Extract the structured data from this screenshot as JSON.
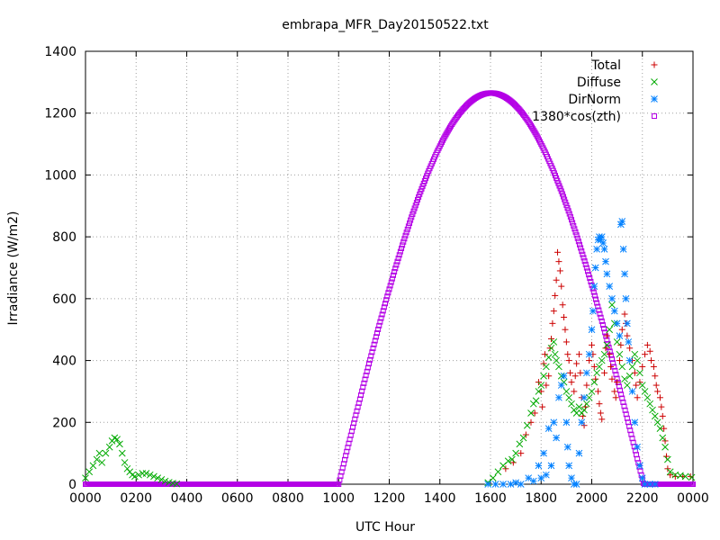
{
  "chart_data": {
    "type": "scatter",
    "title": "embrapa_MFR_Day20150522.txt",
    "xlabel": "UTC Hour",
    "ylabel": "Irradiance (W/m2)",
    "xlim": [
      0,
      24
    ],
    "ylim": [
      0,
      1400
    ],
    "grid": true,
    "legend_position": "top-right",
    "x_ticks": [
      {
        "x": 0,
        "label": "0000"
      },
      {
        "x": 2,
        "label": "0200"
      },
      {
        "x": 4,
        "label": "0400"
      },
      {
        "x": 6,
        "label": "0600"
      },
      {
        "x": 8,
        "label": "0800"
      },
      {
        "x": 10,
        "label": "1000"
      },
      {
        "x": 12,
        "label": "1200"
      },
      {
        "x": 14,
        "label": "1400"
      },
      {
        "x": 16,
        "label": "1600"
      },
      {
        "x": 18,
        "label": "1800"
      },
      {
        "x": 20,
        "label": "2000"
      },
      {
        "x": 22,
        "label": "2200"
      },
      {
        "x": 24,
        "label": "0000"
      }
    ],
    "y_ticks": [
      0,
      200,
      400,
      600,
      800,
      1000,
      1200,
      1400
    ],
    "series": [
      {
        "name": "Total",
        "marker": "+",
        "color": "#cc0000",
        "points": [
          [
            16.6,
            50
          ],
          [
            16.9,
            70
          ],
          [
            17.2,
            100
          ],
          [
            17.4,
            160
          ],
          [
            17.6,
            200
          ],
          [
            17.75,
            230
          ],
          [
            17.9,
            330
          ],
          [
            18.0,
            300
          ],
          [
            18.05,
            250
          ],
          [
            18.1,
            390
          ],
          [
            18.15,
            420
          ],
          [
            18.2,
            320
          ],
          [
            18.3,
            350
          ],
          [
            18.35,
            440
          ],
          [
            18.4,
            470
          ],
          [
            18.45,
            520
          ],
          [
            18.5,
            560
          ],
          [
            18.55,
            610
          ],
          [
            18.6,
            660
          ],
          [
            18.65,
            750
          ],
          [
            18.7,
            720
          ],
          [
            18.75,
            690
          ],
          [
            18.8,
            640
          ],
          [
            18.85,
            580
          ],
          [
            18.9,
            540
          ],
          [
            18.95,
            500
          ],
          [
            19.0,
            460
          ],
          [
            19.05,
            420
          ],
          [
            19.1,
            400
          ],
          [
            19.15,
            360
          ],
          [
            19.2,
            330
          ],
          [
            19.3,
            300
          ],
          [
            19.35,
            350
          ],
          [
            19.4,
            390
          ],
          [
            19.5,
            420
          ],
          [
            19.55,
            360
          ],
          [
            19.6,
            280
          ],
          [
            19.65,
            220
          ],
          [
            19.7,
            190
          ],
          [
            19.75,
            250
          ],
          [
            19.8,
            320
          ],
          [
            19.9,
            400
          ],
          [
            20.0,
            450
          ],
          [
            20.05,
            420
          ],
          [
            20.1,
            380
          ],
          [
            20.15,
            340
          ],
          [
            20.25,
            300
          ],
          [
            20.3,
            260
          ],
          [
            20.35,
            230
          ],
          [
            20.4,
            210
          ],
          [
            20.5,
            360
          ],
          [
            20.55,
            440
          ],
          [
            20.6,
            480
          ],
          [
            20.7,
            420
          ],
          [
            20.75,
            380
          ],
          [
            20.8,
            340
          ],
          [
            20.9,
            300
          ],
          [
            20.95,
            280
          ],
          [
            21.0,
            330
          ],
          [
            21.1,
            400
          ],
          [
            21.15,
            450
          ],
          [
            21.2,
            500
          ],
          [
            21.3,
            550
          ],
          [
            21.35,
            520
          ],
          [
            21.4,
            480
          ],
          [
            21.5,
            440
          ],
          [
            21.6,
            400
          ],
          [
            21.7,
            360
          ],
          [
            21.75,
            320
          ],
          [
            21.8,
            280
          ],
          [
            21.9,
            330
          ],
          [
            22.0,
            380
          ],
          [
            22.1,
            420
          ],
          [
            22.2,
            450
          ],
          [
            22.3,
            430
          ],
          [
            22.35,
            400
          ],
          [
            22.45,
            380
          ],
          [
            22.5,
            350
          ],
          [
            22.55,
            320
          ],
          [
            22.6,
            300
          ],
          [
            22.7,
            280
          ],
          [
            22.75,
            250
          ],
          [
            22.8,
            220
          ],
          [
            22.85,
            180
          ],
          [
            22.9,
            140
          ],
          [
            22.95,
            90
          ],
          [
            23.0,
            50
          ],
          [
            23.1,
            30
          ],
          [
            23.3,
            25
          ],
          [
            23.6,
            25
          ],
          [
            23.9,
            25
          ]
        ]
      },
      {
        "name": "Diffuse",
        "marker": "x",
        "color": "#00aa00",
        "points": [
          [
            0.0,
            20
          ],
          [
            0.15,
            40
          ],
          [
            0.3,
            60
          ],
          [
            0.45,
            80
          ],
          [
            0.55,
            100
          ],
          [
            0.65,
            70
          ],
          [
            0.8,
            100
          ],
          [
            0.95,
            120
          ],
          [
            1.05,
            140
          ],
          [
            1.15,
            150
          ],
          [
            1.25,
            145
          ],
          [
            1.35,
            130
          ],
          [
            1.45,
            100
          ],
          [
            1.55,
            70
          ],
          [
            1.65,
            50
          ],
          [
            1.75,
            40
          ],
          [
            1.85,
            30
          ],
          [
            1.95,
            25
          ],
          [
            2.1,
            30
          ],
          [
            2.25,
            35
          ],
          [
            2.4,
            35
          ],
          [
            2.55,
            30
          ],
          [
            2.7,
            25
          ],
          [
            2.85,
            20
          ],
          [
            3.0,
            15
          ],
          [
            3.15,
            10
          ],
          [
            3.3,
            6
          ],
          [
            3.45,
            3
          ],
          [
            3.6,
            1
          ],
          [
            15.9,
            5
          ],
          [
            16.1,
            20
          ],
          [
            16.3,
            40
          ],
          [
            16.5,
            60
          ],
          [
            16.7,
            75
          ],
          [
            16.85,
            80
          ],
          [
            17.0,
            100
          ],
          [
            17.15,
            130
          ],
          [
            17.3,
            150
          ],
          [
            17.45,
            190
          ],
          [
            17.6,
            230
          ],
          [
            17.7,
            260
          ],
          [
            17.8,
            270
          ],
          [
            17.9,
            300
          ],
          [
            18.0,
            320
          ],
          [
            18.1,
            350
          ],
          [
            18.2,
            380
          ],
          [
            18.3,
            410
          ],
          [
            18.4,
            440
          ],
          [
            18.5,
            460
          ],
          [
            18.55,
            420
          ],
          [
            18.6,
            400
          ],
          [
            18.7,
            380
          ],
          [
            18.8,
            350
          ],
          [
            18.9,
            330
          ],
          [
            19.0,
            300
          ],
          [
            19.1,
            280
          ],
          [
            19.2,
            260
          ],
          [
            19.3,
            240
          ],
          [
            19.4,
            230
          ],
          [
            19.5,
            250
          ],
          [
            19.6,
            230
          ],
          [
            19.7,
            240
          ],
          [
            19.8,
            260
          ],
          [
            19.9,
            280
          ],
          [
            20.0,
            300
          ],
          [
            20.1,
            330
          ],
          [
            20.2,
            360
          ],
          [
            20.3,
            380
          ],
          [
            20.4,
            400
          ],
          [
            20.5,
            420
          ],
          [
            20.6,
            450
          ],
          [
            20.7,
            500
          ],
          [
            20.8,
            580
          ],
          [
            20.9,
            520
          ],
          [
            21.0,
            460
          ],
          [
            21.1,
            420
          ],
          [
            21.2,
            380
          ],
          [
            21.3,
            340
          ],
          [
            21.4,
            320
          ],
          [
            21.5,
            350
          ],
          [
            21.6,
            380
          ],
          [
            21.7,
            420
          ],
          [
            21.8,
            400
          ],
          [
            21.9,
            360
          ],
          [
            22.0,
            320
          ],
          [
            22.1,
            300
          ],
          [
            22.2,
            280
          ],
          [
            22.3,
            260
          ],
          [
            22.4,
            240
          ],
          [
            22.5,
            220
          ],
          [
            22.6,
            200
          ],
          [
            22.7,
            180
          ],
          [
            22.8,
            150
          ],
          [
            22.9,
            120
          ],
          [
            23.0,
            80
          ],
          [
            23.1,
            40
          ],
          [
            23.3,
            30
          ],
          [
            23.5,
            28
          ],
          [
            23.7,
            25
          ],
          [
            23.95,
            22
          ]
        ]
      },
      {
        "name": "DirNorm",
        "marker": "*",
        "color": "#0080ff",
        "points": [
          [
            15.9,
            0
          ],
          [
            16.2,
            0
          ],
          [
            16.5,
            0
          ],
          [
            16.8,
            0
          ],
          [
            17.0,
            5
          ],
          [
            17.2,
            0
          ],
          [
            17.5,
            20
          ],
          [
            17.7,
            10
          ],
          [
            17.9,
            60
          ],
          [
            18.0,
            20
          ],
          [
            18.1,
            100
          ],
          [
            18.2,
            30
          ],
          [
            18.3,
            180
          ],
          [
            18.4,
            60
          ],
          [
            18.5,
            200
          ],
          [
            18.6,
            150
          ],
          [
            18.7,
            280
          ],
          [
            18.8,
            320
          ],
          [
            18.9,
            350
          ],
          [
            19.0,
            200
          ],
          [
            19.05,
            120
          ],
          [
            19.1,
            60
          ],
          [
            19.2,
            20
          ],
          [
            19.3,
            0
          ],
          [
            19.4,
            0
          ],
          [
            19.5,
            100
          ],
          [
            19.6,
            200
          ],
          [
            19.7,
            280
          ],
          [
            19.8,
            360
          ],
          [
            19.9,
            420
          ],
          [
            20.0,
            500
          ],
          [
            20.05,
            560
          ],
          [
            20.1,
            640
          ],
          [
            20.15,
            700
          ],
          [
            20.2,
            760
          ],
          [
            20.25,
            790
          ],
          [
            20.3,
            800
          ],
          [
            20.35,
            790
          ],
          [
            20.4,
            800
          ],
          [
            20.45,
            780
          ],
          [
            20.5,
            760
          ],
          [
            20.55,
            720
          ],
          [
            20.6,
            680
          ],
          [
            20.7,
            640
          ],
          [
            20.8,
            600
          ],
          [
            20.9,
            560
          ],
          [
            21.0,
            520
          ],
          [
            21.1,
            480
          ],
          [
            21.15,
            840
          ],
          [
            21.2,
            850
          ],
          [
            21.25,
            760
          ],
          [
            21.3,
            680
          ],
          [
            21.35,
            600
          ],
          [
            21.4,
            520
          ],
          [
            21.45,
            460
          ],
          [
            21.5,
            400
          ],
          [
            21.6,
            300
          ],
          [
            21.7,
            200
          ],
          [
            21.8,
            120
          ],
          [
            21.9,
            60
          ],
          [
            22.0,
            20
          ],
          [
            22.1,
            0
          ],
          [
            22.3,
            0
          ],
          [
            22.5,
            0
          ]
        ]
      },
      {
        "name": "1380*cos(zth)",
        "marker": "square",
        "color": "#b400e6",
        "formula": {
          "type": "cos-curve",
          "rise": 10.0,
          "set": 22.05,
          "peak": 16.02,
          "peak_value": 1265,
          "baseline": 0,
          "step_hours": 0.04
        }
      }
    ]
  }
}
